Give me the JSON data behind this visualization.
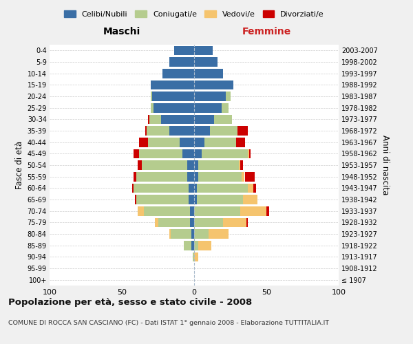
{
  "age_groups": [
    "100+",
    "95-99",
    "90-94",
    "85-89",
    "80-84",
    "75-79",
    "70-74",
    "65-69",
    "60-64",
    "55-59",
    "50-54",
    "45-49",
    "40-44",
    "35-39",
    "30-34",
    "25-29",
    "20-24",
    "15-19",
    "10-14",
    "5-9",
    "0-4"
  ],
  "birth_years": [
    "≤ 1907",
    "1908-1912",
    "1913-1917",
    "1918-1922",
    "1923-1927",
    "1928-1932",
    "1933-1937",
    "1938-1942",
    "1943-1947",
    "1948-1952",
    "1953-1957",
    "1958-1962",
    "1963-1967",
    "1968-1972",
    "1973-1977",
    "1978-1982",
    "1983-1987",
    "1988-1992",
    "1993-1997",
    "1998-2002",
    "2003-2007"
  ],
  "colors": {
    "celibi": "#3a6ea5",
    "coniugati": "#b5cc8e",
    "vedovi": "#f5c46e",
    "divorziati": "#cc0000"
  },
  "maschi": {
    "celibi": [
      0,
      0,
      0,
      2,
      2,
      3,
      3,
      4,
      4,
      5,
      5,
      8,
      10,
      17,
      23,
      28,
      29,
      30,
      22,
      17,
      14
    ],
    "coniugati": [
      0,
      0,
      1,
      5,
      14,
      22,
      32,
      36,
      38,
      35,
      31,
      30,
      22,
      16,
      8,
      2,
      1,
      0,
      0,
      0,
      0
    ],
    "vedovi": [
      0,
      0,
      0,
      0,
      1,
      2,
      4,
      0,
      0,
      0,
      0,
      0,
      0,
      0,
      0,
      0,
      0,
      0,
      0,
      0,
      0
    ],
    "divorziati": [
      0,
      0,
      0,
      0,
      0,
      0,
      0,
      1,
      1,
      2,
      3,
      4,
      6,
      1,
      1,
      0,
      0,
      0,
      0,
      0,
      0
    ]
  },
  "femmine": {
    "celibi": [
      0,
      0,
      0,
      0,
      0,
      0,
      0,
      2,
      2,
      3,
      3,
      5,
      7,
      11,
      14,
      19,
      22,
      27,
      20,
      16,
      13
    ],
    "coniugati": [
      0,
      0,
      0,
      3,
      10,
      20,
      32,
      32,
      35,
      30,
      28,
      32,
      22,
      19,
      12,
      5,
      3,
      0,
      0,
      0,
      0
    ],
    "vedovi": [
      0,
      0,
      3,
      9,
      14,
      16,
      18,
      10,
      4,
      2,
      1,
      1,
      0,
      0,
      0,
      0,
      0,
      0,
      0,
      0,
      0
    ],
    "divorziati": [
      0,
      0,
      0,
      0,
      0,
      1,
      2,
      0,
      2,
      7,
      2,
      1,
      6,
      7,
      0,
      0,
      0,
      0,
      0,
      0,
      0
    ]
  },
  "xlim": 100,
  "title": "Popolazione per età, sesso e stato civile - 2008",
  "subtitle": "COMUNE DI ROCCA SAN CASCIANO (FC) - Dati ISTAT 1° gennaio 2008 - Elaborazione TUTTITALIA.IT",
  "xlabel_left": "Maschi",
  "xlabel_right": "Femmine",
  "ylabel": "Fasce di età",
  "ylabel_right": "Anni di nascita",
  "legend_labels": [
    "Celibi/Nubili",
    "Coniugati/e",
    "Vedovi/e",
    "Divorziati/e"
  ],
  "bg_color": "#f0f0f0",
  "plot_bg_color": "#ffffff",
  "grid_color": "#cccccc"
}
